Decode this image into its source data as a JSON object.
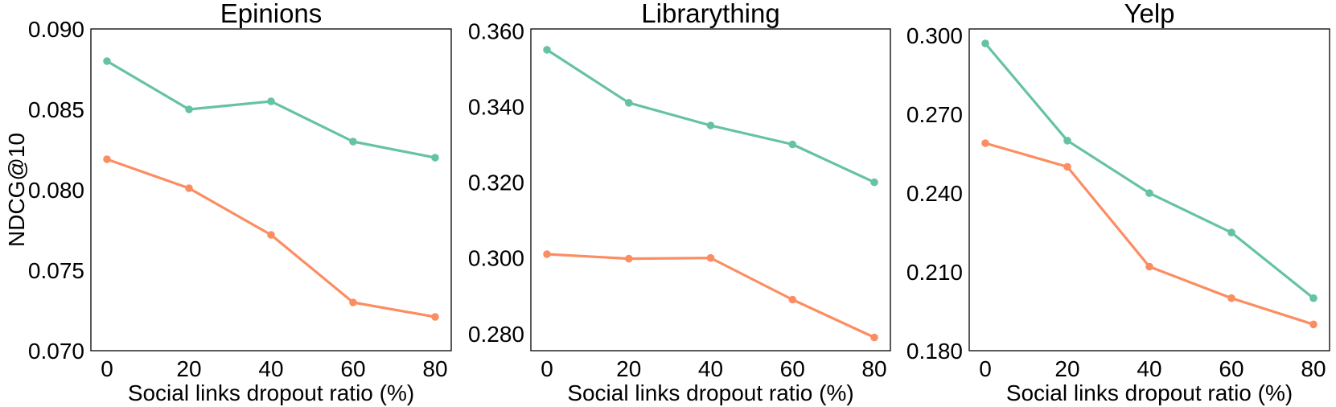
{
  "chart_data": [
    {
      "type": "line",
      "title": "Epinions",
      "xlabel": "Social links dropout ratio (%)",
      "ylabel": "NDCG@10",
      "x": [
        0,
        20,
        40,
        60,
        80
      ],
      "xticks": [
        "0",
        "20",
        "40",
        "60",
        "80"
      ],
      "yticks": [
        "0.070",
        "0.075",
        "0.080",
        "0.085",
        "0.090"
      ],
      "ylim": [
        0.07,
        0.09
      ],
      "grid": false,
      "series": [
        {
          "color": "#66c2a5",
          "values": [
            0.088,
            0.085,
            0.0855,
            0.083,
            0.082
          ]
        },
        {
          "color": "#fc8d62",
          "values": [
            0.0819,
            0.0801,
            0.0772,
            0.073,
            0.0721
          ]
        }
      ]
    },
    {
      "type": "line",
      "title": "Librarything",
      "xlabel": "Social links dropout ratio (%)",
      "ylabel": "",
      "x": [
        0,
        20,
        40,
        60,
        80
      ],
      "xticks": [
        "0",
        "20",
        "40",
        "60",
        "80"
      ],
      "yticks": [
        "0.280",
        "0.300",
        "0.320",
        "0.340",
        "0.360"
      ],
      "ylim": [
        0.2755,
        0.3605
      ],
      "grid": false,
      "series": [
        {
          "color": "#66c2a5",
          "values": [
            0.355,
            0.341,
            0.335,
            0.33,
            0.32
          ]
        },
        {
          "color": "#fc8d62",
          "values": [
            0.301,
            0.2998,
            0.3,
            0.289,
            0.279
          ]
        }
      ]
    },
    {
      "type": "line",
      "title": "Yelp",
      "xlabel": "Social links dropout ratio (%)",
      "ylabel": "",
      "x": [
        0,
        20,
        40,
        60,
        80
      ],
      "xticks": [
        "0",
        "20",
        "40",
        "60",
        "80"
      ],
      "yticks": [
        "0.180",
        "0.210",
        "0.240",
        "0.270",
        "0.300"
      ],
      "ylim": [
        0.18,
        0.3025
      ],
      "grid": false,
      "series": [
        {
          "color": "#66c2a5",
          "values": [
            0.297,
            0.26,
            0.24,
            0.225,
            0.2
          ]
        },
        {
          "color": "#fc8d62",
          "values": [
            0.259,
            0.25,
            0.212,
            0.2,
            0.19
          ]
        }
      ]
    }
  ]
}
